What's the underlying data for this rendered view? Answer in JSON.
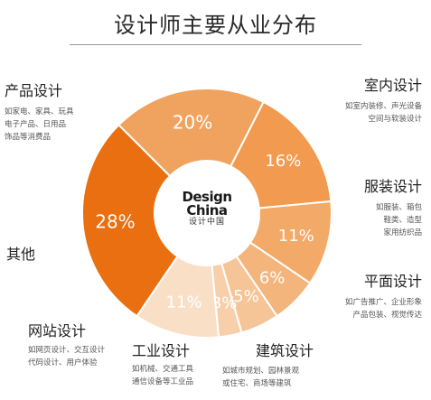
{
  "title": "设计师主要从业分布",
  "logo": {
    "line1": "Design",
    "line2": "China",
    "line3": "设计中国"
  },
  "colors": {
    "slices": [
      "#f0a35f",
      "#f29a50",
      "#f3a967",
      "#f3b57c",
      "#f5c597",
      "#f7d0ab",
      "#fadfc7",
      "#e96f10"
    ],
    "labels": "#ffffff"
  },
  "chart_data": {
    "type": "pie",
    "title": "设计师主要从业分布",
    "slices": [
      {
        "label": "室内设计",
        "value": 20,
        "text": "20%",
        "description": [
          "如室内装修、声光设备",
          "空间与软装设计"
        ]
      },
      {
        "label": "服装设计",
        "value": 16,
        "text": "16%",
        "description": [
          "如服装、箱包",
          "鞋类、造型",
          "家用纺织品"
        ]
      },
      {
        "label": "平面设计",
        "value": 11,
        "text": "11%",
        "description": [
          "如广告推广、企业形象",
          "产品包装、视觉传达"
        ]
      },
      {
        "label": "建筑设计",
        "value": 6,
        "text": "6%",
        "description": [
          "如城市规划、园林景观",
          "或住宅、商场等建筑"
        ]
      },
      {
        "label": "工业设计",
        "value": 5,
        "text": "5%",
        "description": [
          "如机械、交通工具",
          "通信设备等工业品"
        ]
      },
      {
        "label": "网站设计",
        "value": 3,
        "text": "3%",
        "description": [
          "如网页设计、交互设计",
          "代码设计、用户体验"
        ]
      },
      {
        "label": "其他",
        "value": 11,
        "text": "11%",
        "description": []
      },
      {
        "label": "产品设计",
        "value": 28,
        "text": "28%",
        "description": [
          "如家电、家具、玩具",
          "电子产品、日用品",
          "饰品等消费品"
        ]
      }
    ]
  }
}
